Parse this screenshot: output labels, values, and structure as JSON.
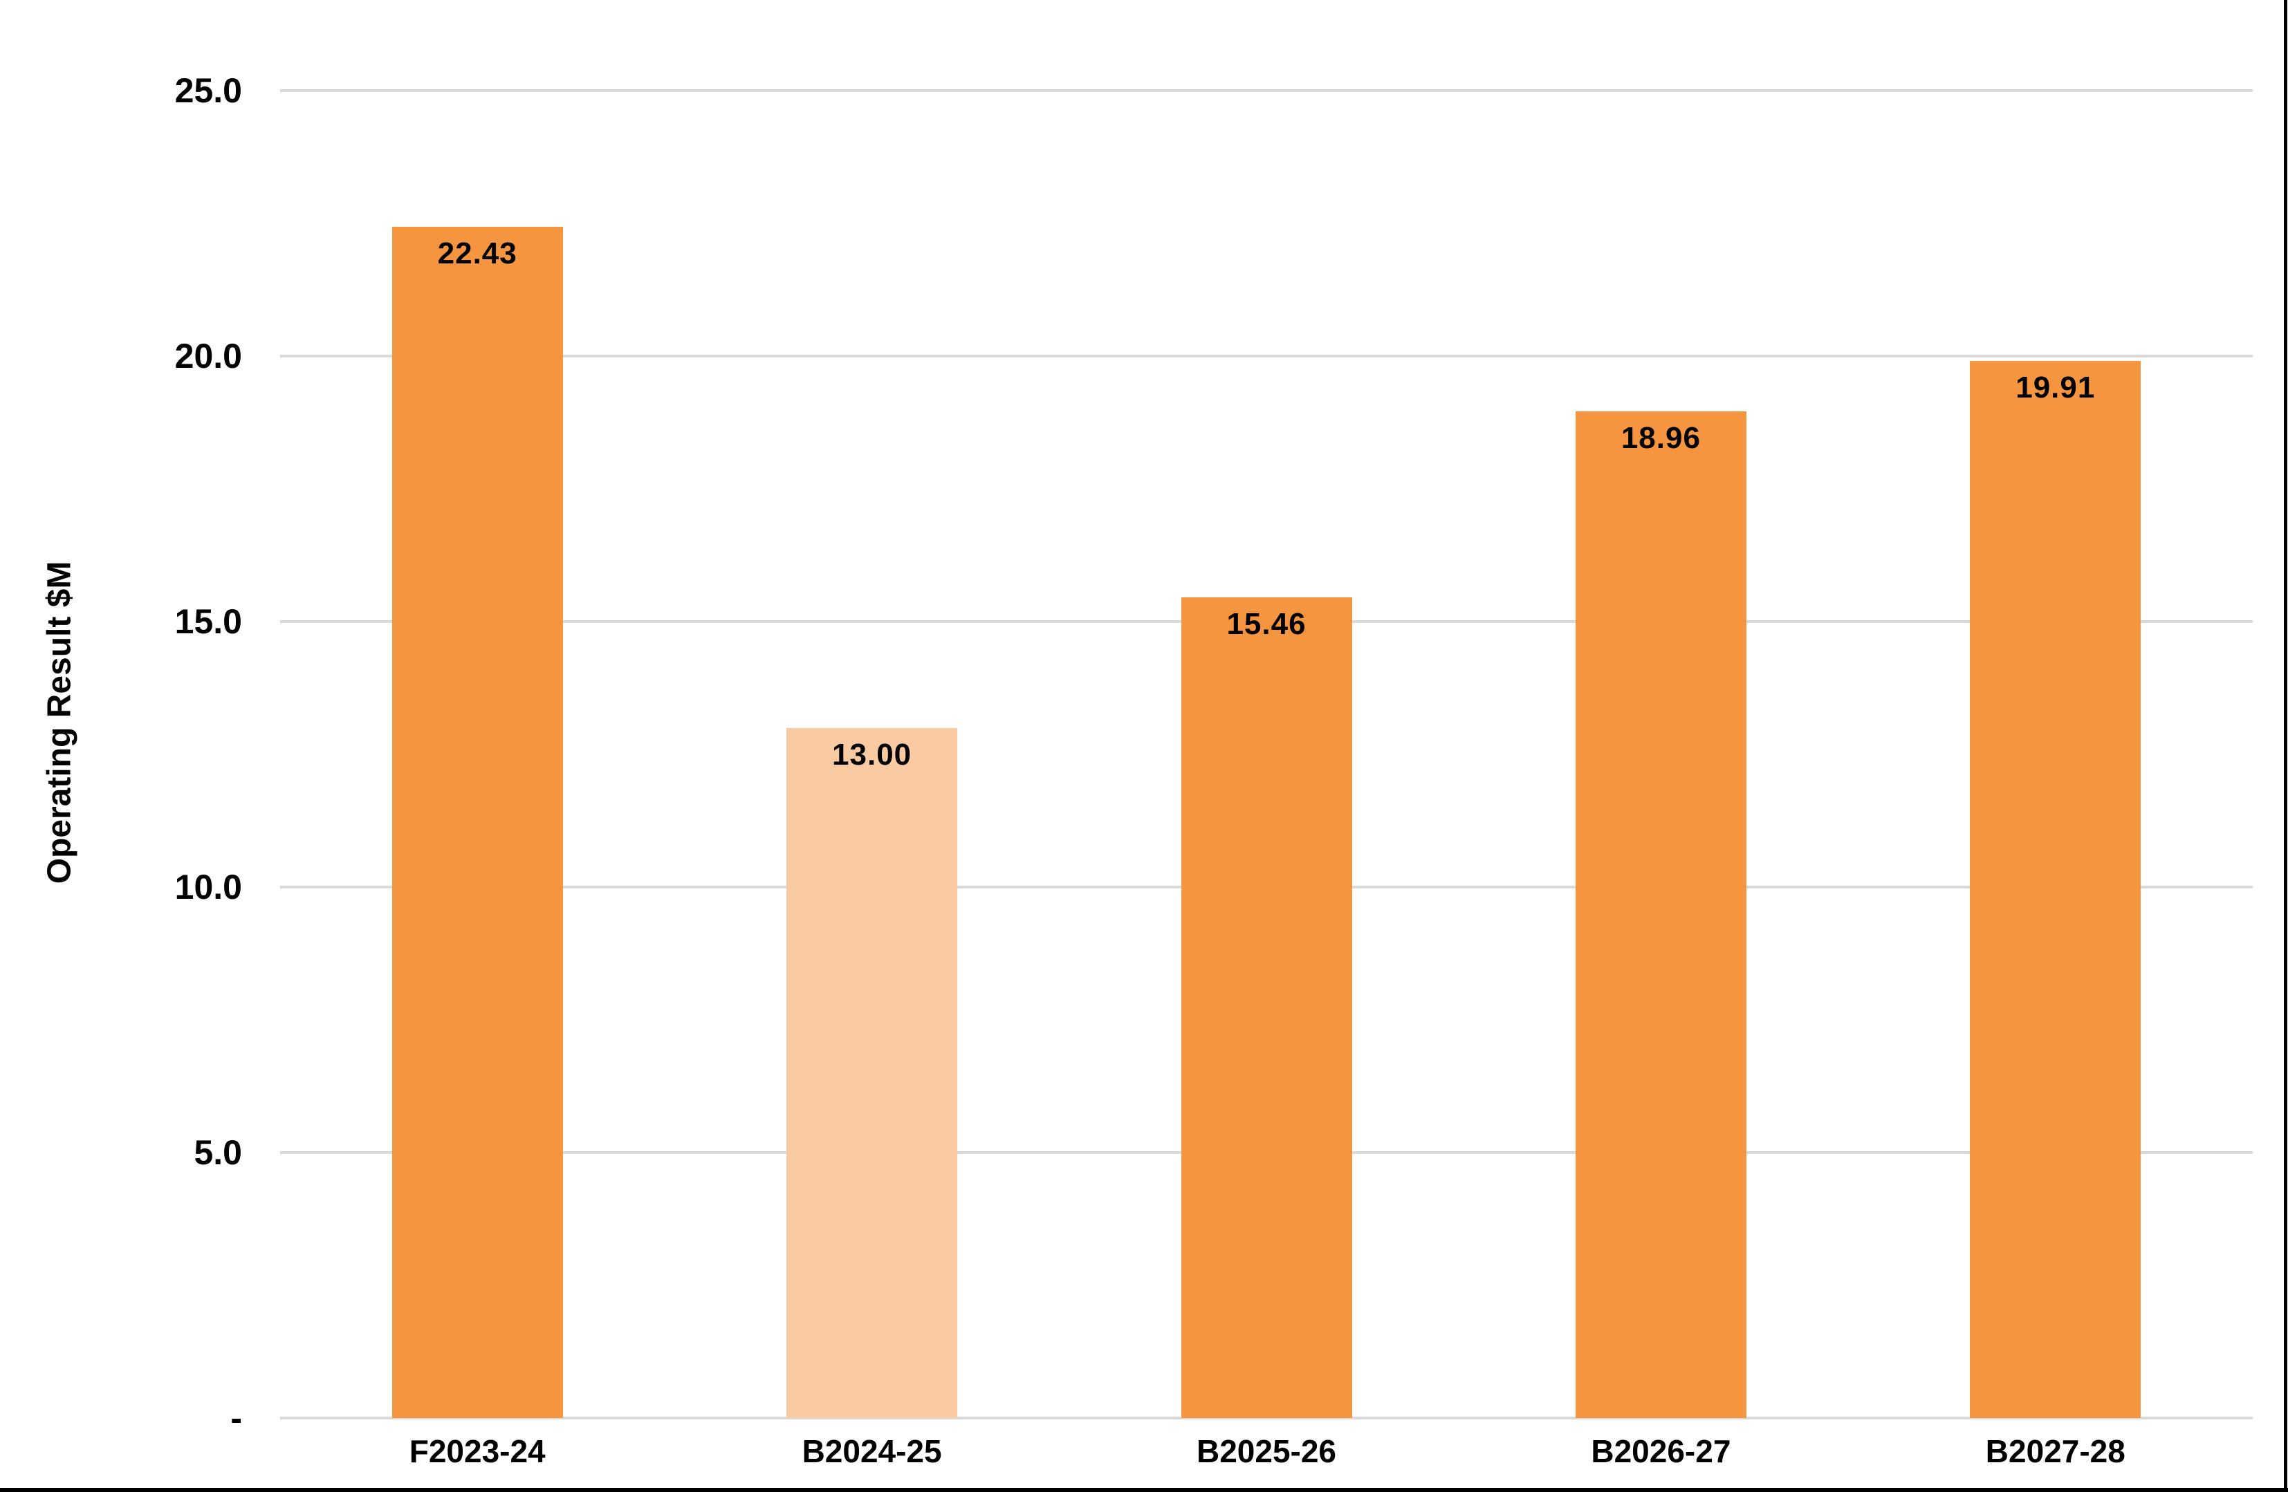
{
  "chart_data": {
    "type": "bar",
    "title": "",
    "xlabel": "",
    "ylabel": "Operating Result $M",
    "categories": [
      "F2023-24",
      "B2024-25",
      "B2025-26",
      "B2026-27",
      "B2027-28"
    ],
    "values": [
      22.43,
      13.0,
      15.46,
      18.96,
      19.91
    ],
    "data_labels": [
      "22.43",
      "13.00",
      "15.46",
      "18.96",
      "19.91"
    ],
    "ylim": [
      0,
      25
    ],
    "yticks": [
      {
        "value": 25,
        "label": "25.0"
      },
      {
        "value": 20,
        "label": "20.0"
      },
      {
        "value": 15,
        "label": "15.0"
      },
      {
        "value": 10,
        "label": "10.0"
      },
      {
        "value": 5,
        "label": "5.0"
      },
      {
        "value": 0,
        "label": "-"
      }
    ],
    "grid": true,
    "legend": false,
    "colors": {
      "bar_default": "#F6953F",
      "bar_highlight": "#FACBA3",
      "highlight_index": 1,
      "gridline": "#D9D9D9",
      "text": "#000000",
      "background": "#FFFFFF",
      "frame_border": "#000000"
    }
  }
}
